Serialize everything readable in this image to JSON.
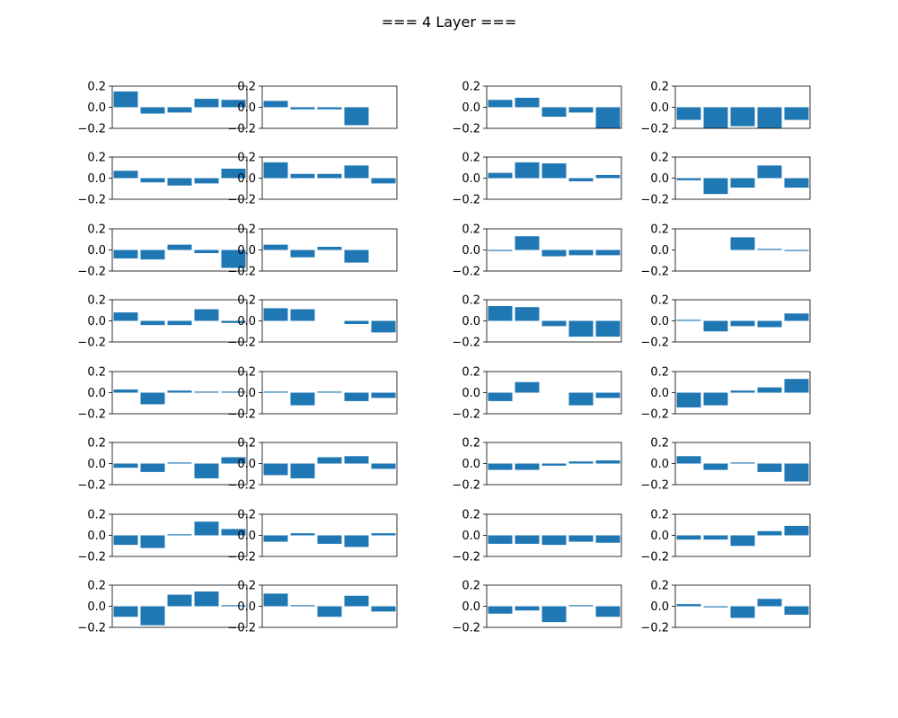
{
  "figure": {
    "title": "=== 4 Layer  ===",
    "bar_color": "#1f77b4"
  },
  "chart_data": {
    "type": "bar",
    "layout": "grid of small-multiple bar charts, 8 rows x 4 columns",
    "ylim": [
      -0.2,
      0.2
    ],
    "yticks": [
      "0.2",
      "0.0",
      "−0.2"
    ],
    "xticks_shown": false,
    "grid": false,
    "panels": [
      [
        0.15,
        -0.06,
        -0.05,
        0.08,
        0.07
      ],
      [
        0.06,
        -0.02,
        -0.02,
        -0.17,
        0.0
      ],
      [
        0.07,
        0.09,
        -0.09,
        -0.05,
        -0.22
      ],
      [
        -0.12,
        -0.21,
        -0.18,
        -0.2,
        -0.12
      ],
      [
        0.07,
        -0.04,
        -0.07,
        -0.05,
        0.09
      ],
      [
        0.15,
        0.04,
        0.04,
        0.12,
        -0.05
      ],
      [
        0.05,
        0.15,
        0.14,
        -0.03,
        0.03
      ],
      [
        -0.02,
        -0.15,
        -0.09,
        0.12,
        -0.09
      ],
      [
        -0.08,
        -0.09,
        0.05,
        -0.03,
        -0.17
      ],
      [
        0.05,
        -0.07,
        0.03,
        -0.12,
        0.0
      ],
      [
        -0.01,
        0.13,
        -0.06,
        -0.05,
        -0.05
      ],
      [
        0.0,
        0.0,
        0.12,
        0.01,
        -0.01
      ],
      [
        0.08,
        -0.04,
        -0.04,
        0.11,
        -0.02
      ],
      [
        0.12,
        0.11,
        0.0,
        -0.03,
        -0.11
      ],
      [
        0.14,
        0.13,
        -0.05,
        -0.15,
        -0.15
      ],
      [
        0.01,
        -0.1,
        -0.05,
        -0.06,
        0.07
      ],
      [
        0.03,
        -0.11,
        0.02,
        0.01,
        0.01
      ],
      [
        0.01,
        -0.12,
        0.01,
        -0.08,
        -0.05
      ],
      [
        -0.08,
        0.1,
        0.0,
        -0.12,
        -0.05
      ],
      [
        -0.14,
        -0.12,
        0.02,
        0.05,
        0.13
      ],
      [
        -0.04,
        -0.08,
        0.01,
        -0.14,
        0.06
      ],
      [
        -0.11,
        -0.14,
        0.06,
        0.07,
        -0.05
      ],
      [
        -0.06,
        -0.06,
        -0.02,
        0.02,
        0.03
      ],
      [
        0.07,
        -0.06,
        0.01,
        -0.08,
        -0.17
      ],
      [
        -0.09,
        -0.12,
        0.01,
        0.13,
        0.06
      ],
      [
        -0.06,
        0.02,
        -0.08,
        -0.11,
        0.02
      ],
      [
        -0.08,
        -0.08,
        -0.09,
        -0.06,
        -0.07
      ],
      [
        -0.04,
        -0.04,
        -0.1,
        0.04,
        0.09
      ],
      [
        -0.1,
        -0.18,
        0.11,
        0.14,
        0.01
      ],
      [
        0.12,
        0.01,
        -0.1,
        0.1,
        -0.05
      ],
      [
        -0.07,
        -0.04,
        -0.15,
        0.01,
        -0.1
      ],
      [
        0.02,
        -0.01,
        -0.11,
        0.07,
        -0.08
      ]
    ]
  }
}
